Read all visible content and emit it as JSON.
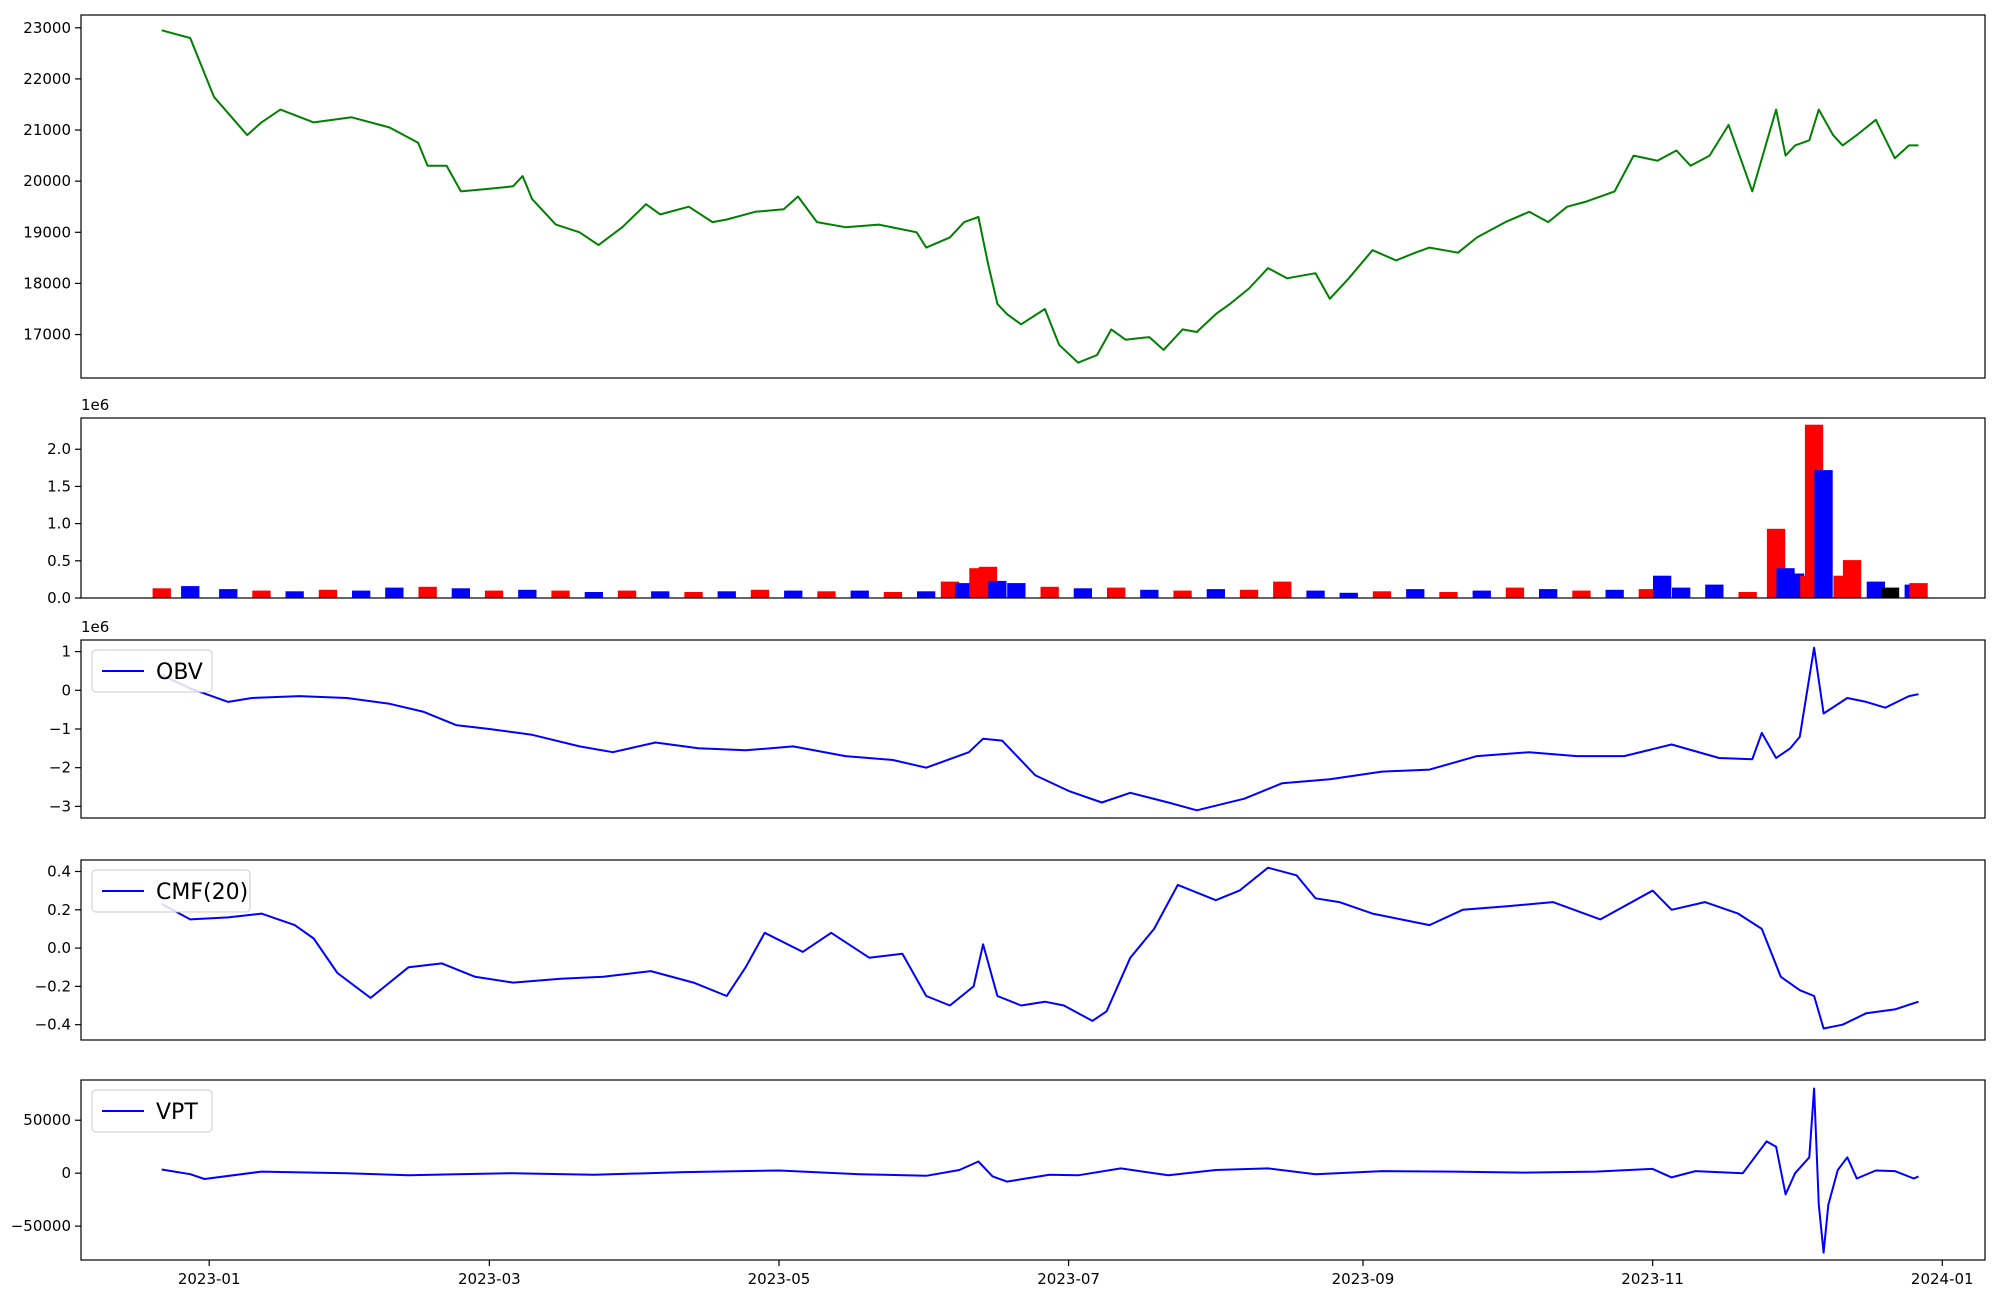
{
  "chart_data": [
    {
      "type": "line",
      "title": "",
      "xlabel": "",
      "ylabel": "",
      "x_ticks": [
        "2023-01",
        "2023-03",
        "2023-05",
        "2023-07",
        "2023-09",
        "2023-11",
        "2024-01"
      ],
      "yticks": [
        17000,
        18000,
        19000,
        20000,
        21000,
        22000,
        23000
      ],
      "ylim": [
        16150,
        23250
      ],
      "legend": null,
      "color": "#008000",
      "series": [
        {
          "x": [
            "2022-12-22",
            "2022-12-28",
            "2023-01-02",
            "2023-01-09",
            "2023-01-12",
            "2023-01-16",
            "2023-01-23",
            "2023-01-31",
            "2023-02-08",
            "2023-02-14",
            "2023-02-16",
            "2023-02-20",
            "2023-02-23",
            "2023-03-01",
            "2023-03-06",
            "2023-03-08",
            "2023-03-10",
            "2023-03-15",
            "2023-03-20",
            "2023-03-24",
            "2023-03-29",
            "2023-04-03",
            "2023-04-06",
            "2023-04-12",
            "2023-04-17",
            "2023-04-20",
            "2023-04-26",
            "2023-05-02",
            "2023-05-05",
            "2023-05-09",
            "2023-05-15",
            "2023-05-22",
            "2023-05-30",
            "2023-06-01",
            "2023-06-06",
            "2023-06-09",
            "2023-06-12",
            "2023-06-14",
            "2023-06-16",
            "2023-06-18",
            "2023-06-21",
            "2023-06-26",
            "2023-06-29",
            "2023-07-03",
            "2023-07-07",
            "2023-07-10",
            "2023-07-13",
            "2023-07-18",
            "2023-07-21",
            "2023-07-25",
            "2023-07-28",
            "2023-08-01",
            "2023-08-04",
            "2023-08-08",
            "2023-08-12",
            "2023-08-16",
            "2023-08-22",
            "2023-08-25",
            "2023-08-29",
            "2023-09-03",
            "2023-09-08",
            "2023-09-12",
            "2023-09-15",
            "2023-09-21",
            "2023-09-25",
            "2023-10-01",
            "2023-10-06",
            "2023-10-10",
            "2023-10-14",
            "2023-10-18",
            "2023-10-24",
            "2023-10-28",
            "2023-11-02",
            "2023-11-06",
            "2023-11-09",
            "2023-11-13",
            "2023-11-17",
            "2023-11-22",
            "2023-11-27",
            "2023-11-29",
            "2023-12-01",
            "2023-12-04",
            "2023-12-06",
            "2023-12-09",
            "2023-12-11",
            "2023-12-14",
            "2023-12-18",
            "2023-12-22",
            "2023-12-25",
            "2023-12-27"
          ],
          "y": [
            22950,
            22800,
            21650,
            20900,
            21150,
            21400,
            21150,
            21250,
            21050,
            20750,
            20300,
            20300,
            19800,
            19850,
            19900,
            20100,
            19650,
            19150,
            19000,
            18750,
            19100,
            19550,
            19350,
            19500,
            19200,
            19250,
            19400,
            19450,
            19700,
            19200,
            19100,
            19150,
            19000,
            18700,
            18900,
            19200,
            19300,
            18400,
            17600,
            17400,
            17200,
            17500,
            16800,
            16450,
            16600,
            17100,
            16900,
            16950,
            16700,
            17100,
            17050,
            17400,
            17600,
            17900,
            18300,
            18100,
            18200,
            17700,
            18100,
            18650,
            18450,
            18600,
            18700,
            18600,
            18900,
            19200,
            19400,
            19200,
            19500,
            19600,
            19800,
            20500,
            20400,
            20600,
            20300,
            20500,
            21100,
            19800,
            21400,
            20500,
            20700,
            20800,
            21400,
            20900,
            20700,
            20900,
            21200,
            20450,
            20700,
            20700
          ]
        }
      ]
    },
    {
      "type": "bar",
      "title": "",
      "xlabel": "",
      "ylabel": "",
      "offset_text": "1e6",
      "x_ticks": [
        "2023-01",
        "2023-03",
        "2023-05",
        "2023-07",
        "2023-09",
        "2023-11",
        "2024-01"
      ],
      "yticks": [
        "0.0",
        "0.5",
        "1.0",
        "1.5",
        "2.0"
      ],
      "ylim": [
        0,
        2.42
      ],
      "legend": null,
      "bar_colors": {
        "up": "#ff0000",
        "down": "#0000ff",
        "flat": "#000000"
      },
      "series": [
        {
          "name": "",
          "x": [
            "2022-12-22",
            "2022-12-28",
            "2023-01-05",
            "2023-01-12",
            "2023-01-19",
            "2023-01-26",
            "2023-02-02",
            "2023-02-09",
            "2023-02-16",
            "2023-02-23",
            "2023-03-02",
            "2023-03-09",
            "2023-03-16",
            "2023-03-23",
            "2023-03-30",
            "2023-04-06",
            "2023-04-13",
            "2023-04-20",
            "2023-04-27",
            "2023-05-04",
            "2023-05-11",
            "2023-05-18",
            "2023-05-25",
            "2023-06-01",
            "2023-06-06",
            "2023-06-09",
            "2023-06-12",
            "2023-06-14",
            "2023-06-16",
            "2023-06-20",
            "2023-06-27",
            "2023-07-04",
            "2023-07-11",
            "2023-07-18",
            "2023-07-25",
            "2023-08-01",
            "2023-08-08",
            "2023-08-15",
            "2023-08-22",
            "2023-08-29",
            "2023-09-05",
            "2023-09-12",
            "2023-09-19",
            "2023-09-26",
            "2023-10-03",
            "2023-10-10",
            "2023-10-17",
            "2023-10-24",
            "2023-10-31",
            "2023-11-03",
            "2023-11-07",
            "2023-11-14",
            "2023-11-21",
            "2023-11-27",
            "2023-11-29",
            "2023-12-01",
            "2023-12-04",
            "2023-12-05",
            "2023-12-07",
            "2023-12-11",
            "2023-12-13",
            "2023-12-18",
            "2023-12-21",
            "2023-12-26",
            "2023-12-27"
          ],
          "values": [
            0.13,
            0.16,
            0.12,
            0.1,
            0.09,
            0.11,
            0.1,
            0.14,
            0.15,
            0.13,
            0.1,
            0.11,
            0.1,
            0.08,
            0.1,
            0.09,
            0.08,
            0.09,
            0.11,
            0.1,
            0.09,
            0.1,
            0.08,
            0.09,
            0.22,
            0.2,
            0.4,
            0.42,
            0.23,
            0.2,
            0.15,
            0.13,
            0.14,
            0.11,
            0.1,
            0.12,
            0.11,
            0.22,
            0.1,
            0.07,
            0.09,
            0.12,
            0.08,
            0.1,
            0.14,
            0.12,
            0.1,
            0.11,
            0.12,
            0.3,
            0.14,
            0.18,
            0.08,
            0.93,
            0.4,
            0.33,
            0.3,
            2.33,
            1.72,
            0.3,
            0.51,
            0.22,
            0.14,
            0.18,
            0.2
          ],
          "direction": [
            "up",
            "down",
            "down",
            "up",
            "down",
            "up",
            "down",
            "down",
            "up",
            "down",
            "up",
            "down",
            "up",
            "down",
            "up",
            "down",
            "up",
            "down",
            "up",
            "down",
            "up",
            "down",
            "up",
            "down",
            "up",
            "down",
            "up",
            "up",
            "down",
            "down",
            "up",
            "down",
            "up",
            "down",
            "up",
            "down",
            "up",
            "up",
            "down",
            "down",
            "up",
            "down",
            "up",
            "down",
            "up",
            "down",
            "up",
            "down",
            "up",
            "down",
            "down",
            "down",
            "up",
            "up",
            "down",
            "down",
            "up",
            "up",
            "down",
            "up",
            "up",
            "down",
            "flat",
            "down",
            "up"
          ]
        }
      ]
    },
    {
      "type": "line",
      "title": "",
      "xlabel": "",
      "ylabel": "",
      "offset_text": "1e6",
      "x_ticks": [
        "2023-01",
        "2023-03",
        "2023-05",
        "2023-07",
        "2023-09",
        "2023-11",
        "2024-01"
      ],
      "yticks": [
        "−3",
        "−2",
        "−1",
        "0",
        "1"
      ],
      "ylim": [
        -3.3,
        1.3
      ],
      "legend": {
        "position": "upper-left",
        "entries": [
          "OBV"
        ]
      },
      "series": [
        {
          "name": "OBV",
          "color": "#0000ff",
          "x": [
            "2022-12-22",
            "2022-12-28",
            "2023-01-05",
            "2023-01-10",
            "2023-01-20",
            "2023-01-30",
            "2023-02-08",
            "2023-02-15",
            "2023-02-22",
            "2023-03-01",
            "2023-03-10",
            "2023-03-20",
            "2023-03-27",
            "2023-04-05",
            "2023-04-14",
            "2023-04-24",
            "2023-05-04",
            "2023-05-15",
            "2023-05-25",
            "2023-06-01",
            "2023-06-10",
            "2023-06-13",
            "2023-06-17",
            "2023-06-24",
            "2023-07-01",
            "2023-07-08",
            "2023-07-14",
            "2023-07-22",
            "2023-07-28",
            "2023-08-07",
            "2023-08-15",
            "2023-08-25",
            "2023-09-05",
            "2023-09-15",
            "2023-09-25",
            "2023-10-06",
            "2023-10-16",
            "2023-10-26",
            "2023-11-05",
            "2023-11-15",
            "2023-11-22",
            "2023-11-24",
            "2023-11-27",
            "2023-11-30",
            "2023-12-02",
            "2023-12-05",
            "2023-12-07",
            "2023-12-12",
            "2023-12-16",
            "2023-12-20",
            "2023-12-25",
            "2023-12-27"
          ],
          "y": [
            0.4,
            0.05,
            -0.3,
            -0.2,
            -0.15,
            -0.2,
            -0.35,
            -0.55,
            -0.9,
            -1.0,
            -1.15,
            -1.45,
            -1.6,
            -1.35,
            -1.5,
            -1.55,
            -1.45,
            -1.7,
            -1.8,
            -2.0,
            -1.6,
            -1.25,
            -1.3,
            -2.2,
            -2.6,
            -2.9,
            -2.65,
            -2.9,
            -3.1,
            -2.8,
            -2.4,
            -2.3,
            -2.1,
            -2.05,
            -1.7,
            -1.6,
            -1.7,
            -1.7,
            -1.4,
            -1.75,
            -1.78,
            -1.1,
            -1.75,
            -1.5,
            -1.2,
            1.1,
            -0.6,
            -0.2,
            -0.3,
            -0.45,
            -0.15,
            -0.1
          ]
        }
      ]
    },
    {
      "type": "line",
      "title": "",
      "xlabel": "",
      "ylabel": "",
      "x_ticks": [
        "2023-01",
        "2023-03",
        "2023-05",
        "2023-07",
        "2023-09",
        "2023-11",
        "2024-01"
      ],
      "yticks": [
        "−0.4",
        "−0.2",
        "0.0",
        "0.2",
        "0.4"
      ],
      "ylim": [
        -0.48,
        0.46
      ],
      "legend": {
        "position": "upper-left",
        "entries": [
          "CMF(20)"
        ]
      },
      "series": [
        {
          "name": "CMF(20)",
          "color": "#0000ff",
          "x": [
            "2022-12-22",
            "2022-12-28",
            "2023-01-05",
            "2023-01-12",
            "2023-01-19",
            "2023-01-23",
            "2023-01-28",
            "2023-02-04",
            "2023-02-12",
            "2023-02-19",
            "2023-02-26",
            "2023-03-06",
            "2023-03-16",
            "2023-03-25",
            "2023-04-04",
            "2023-04-13",
            "2023-04-20",
            "2023-04-24",
            "2023-04-28",
            "2023-05-06",
            "2023-05-12",
            "2023-05-20",
            "2023-05-27",
            "2023-06-01",
            "2023-06-06",
            "2023-06-11",
            "2023-06-13",
            "2023-06-16",
            "2023-06-21",
            "2023-06-26",
            "2023-06-30",
            "2023-07-06",
            "2023-07-09",
            "2023-07-14",
            "2023-07-19",
            "2023-07-24",
            "2023-08-01",
            "2023-08-06",
            "2023-08-12",
            "2023-08-18",
            "2023-08-22",
            "2023-08-27",
            "2023-09-03",
            "2023-09-09",
            "2023-09-15",
            "2023-09-22",
            "2023-10-02",
            "2023-10-11",
            "2023-10-21",
            "2023-11-01",
            "2023-11-05",
            "2023-11-12",
            "2023-11-19",
            "2023-11-24",
            "2023-11-28",
            "2023-12-02",
            "2023-12-05",
            "2023-12-07",
            "2023-12-11",
            "2023-12-16",
            "2023-12-22",
            "2023-12-27"
          ],
          "y": [
            0.23,
            0.15,
            0.16,
            0.18,
            0.12,
            0.05,
            -0.13,
            -0.26,
            -0.1,
            -0.08,
            -0.15,
            -0.18,
            -0.16,
            -0.15,
            -0.12,
            -0.18,
            -0.25,
            -0.1,
            0.08,
            -0.02,
            0.08,
            -0.05,
            -0.03,
            -0.25,
            -0.3,
            -0.2,
            0.02,
            -0.25,
            -0.3,
            -0.28,
            -0.3,
            -0.38,
            -0.33,
            -0.05,
            0.1,
            0.33,
            0.25,
            0.3,
            0.42,
            0.38,
            0.26,
            0.24,
            0.18,
            0.15,
            0.12,
            0.2,
            0.22,
            0.24,
            0.15,
            0.3,
            0.2,
            0.24,
            0.18,
            0.1,
            -0.15,
            -0.22,
            -0.25,
            -0.42,
            -0.4,
            -0.34,
            -0.32,
            -0.28
          ]
        }
      ]
    },
    {
      "type": "line",
      "title": "",
      "xlabel": "",
      "ylabel": "",
      "x_tick_labels": [
        "2023-01",
        "2023-03",
        "2023-05",
        "2023-07",
        "2023-09",
        "2023-11",
        "2024-01"
      ],
      "yticks": [
        "−50000",
        "0",
        "50000"
      ],
      "ylim": [
        -82000,
        88000
      ],
      "legend": {
        "position": "upper-left",
        "entries": [
          "VPT"
        ]
      },
      "series": [
        {
          "name": "VPT",
          "color": "#0000ff",
          "x": [
            "2022-12-22",
            "2022-12-28",
            "2022-12-31",
            "2023-01-12",
            "2023-01-30",
            "2023-02-12",
            "2023-02-22",
            "2023-03-06",
            "2023-03-23",
            "2023-04-11",
            "2023-05-01",
            "2023-05-18",
            "2023-06-01",
            "2023-06-08",
            "2023-06-12",
            "2023-06-15",
            "2023-06-18",
            "2023-06-22",
            "2023-06-27",
            "2023-07-03",
            "2023-07-12",
            "2023-07-22",
            "2023-08-01",
            "2023-08-12",
            "2023-08-22",
            "2023-09-05",
            "2023-09-20",
            "2023-10-05",
            "2023-10-20",
            "2023-11-01",
            "2023-11-05",
            "2023-11-10",
            "2023-11-20",
            "2023-11-25",
            "2023-11-27",
            "2023-11-29",
            "2023-12-01",
            "2023-12-03",
            "2023-12-04",
            "2023-12-05",
            "2023-12-06",
            "2023-12-07",
            "2023-12-08",
            "2023-12-10",
            "2023-12-12",
            "2023-12-14",
            "2023-12-18",
            "2023-12-22",
            "2023-12-26",
            "2023-12-27"
          ],
          "y": [
            3500,
            -1000,
            -5500,
            1500,
            0,
            -2000,
            -1000,
            0,
            -1500,
            1000,
            2500,
            -1000,
            -2500,
            3000,
            11000,
            -3000,
            -8000,
            -5000,
            -1500,
            -2000,
            4500,
            -2000,
            3000,
            4500,
            -1000,
            2000,
            1500,
            500,
            1500,
            4000,
            -4000,
            2000,
            0,
            30000,
            25000,
            -20000,
            0,
            10000,
            15000,
            80000,
            -30000,
            -75000,
            -30000,
            3000,
            15000,
            -5000,
            2500,
            2000,
            -5000,
            -3000
          ]
        }
      ]
    }
  ]
}
